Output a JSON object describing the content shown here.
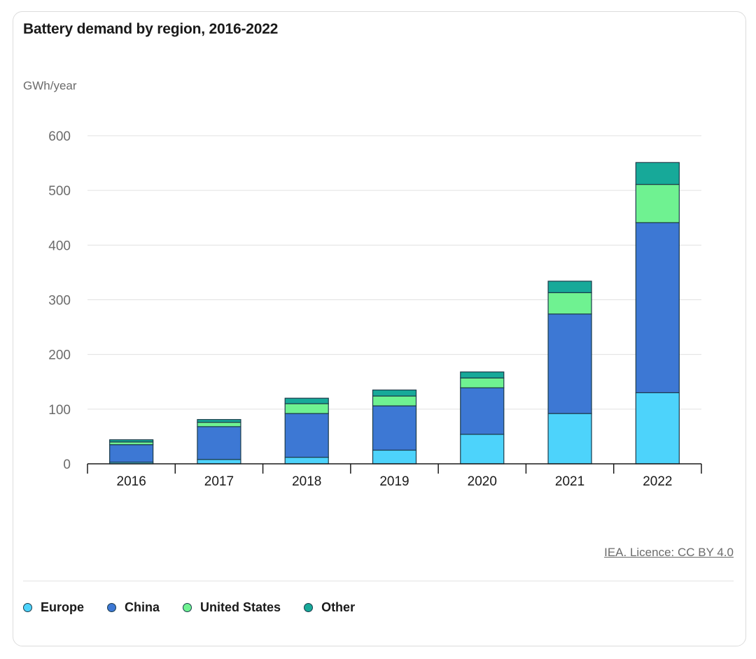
{
  "chart_data": {
    "type": "bar",
    "stacked": true,
    "title": "Battery demand by region, 2016-2022",
    "ylabel": "GWh/year",
    "xlabel": "",
    "ylim": [
      0,
      600
    ],
    "yticks": [
      0,
      100,
      200,
      300,
      400,
      500,
      600
    ],
    "categories": [
      "2016",
      "2017",
      "2018",
      "2019",
      "2020",
      "2021",
      "2022"
    ],
    "series": [
      {
        "name": "Europe",
        "color": "#4dd3fb",
        "values": [
          3,
          8,
          12,
          25,
          54,
          92,
          130
        ]
      },
      {
        "name": "China",
        "color": "#3d78d4",
        "values": [
          32,
          60,
          80,
          81,
          85,
          182,
          311
        ]
      },
      {
        "name": "United States",
        "color": "#6ff291",
        "values": [
          5,
          8,
          18,
          18,
          18,
          39,
          70
        ]
      },
      {
        "name": "Other",
        "color": "#17a999",
        "values": [
          4,
          5,
          10,
          11,
          11,
          21,
          40
        ]
      }
    ],
    "legend_position": "bottom-left",
    "grid": true
  },
  "source": {
    "label": "IEA. Licence: CC BY 4.0"
  },
  "colors": {
    "axis": "#1a1a1a",
    "grid": "#e0e0e0",
    "bar_stroke": "#1c3b4a"
  }
}
